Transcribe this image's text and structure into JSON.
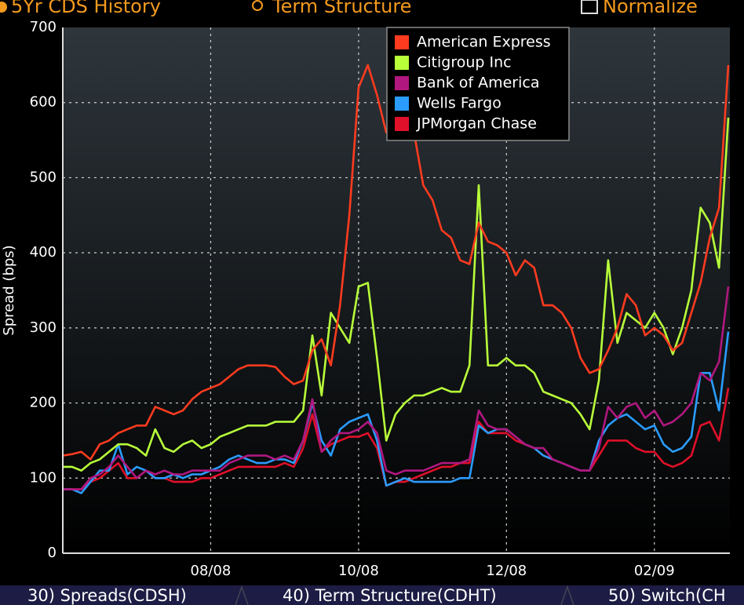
{
  "toolbar": {
    "left": "5Yr CDS History",
    "middle": "Term Structure",
    "right": "Normalize"
  },
  "footer": {
    "items": [
      "30) Spreads(CDSH)",
      "40) Term Structure(CDHT)",
      "50) Switch(CH"
    ]
  },
  "chart_data": {
    "type": "line",
    "y_label": "Spread (bps)",
    "categories": [
      null,
      null,
      null,
      null,
      null,
      null,
      null,
      null,
      null,
      null,
      null,
      null,
      null,
      null,
      null,
      null,
      "08/08",
      null,
      null,
      null,
      null,
      null,
      null,
      null,
      null,
      null,
      null,
      null,
      null,
      null,
      null,
      null,
      "10/08",
      null,
      null,
      null,
      null,
      null,
      null,
      null,
      null,
      null,
      null,
      null,
      null,
      null,
      null,
      null,
      "12/08",
      null,
      null,
      null,
      null,
      null,
      null,
      null,
      null,
      null,
      null,
      null,
      null,
      null,
      null,
      null,
      "02/09",
      null,
      null,
      null,
      null,
      null,
      null,
      null,
      null
    ],
    "ylim": [
      0,
      700
    ],
    "yticks": [
      0,
      100,
      200,
      300,
      400,
      500,
      600,
      700
    ],
    "grid": true,
    "legend": "upper center",
    "series": [
      {
        "name": "American Express",
        "color": "#ff3b1f",
        "values": [
          130,
          132,
          135,
          125,
          145,
          150,
          160,
          165,
          170,
          170,
          195,
          190,
          185,
          190,
          205,
          215,
          220,
          225,
          235,
          245,
          250,
          250,
          250,
          248,
          235,
          225,
          230,
          270,
          285,
          250,
          330,
          450,
          620,
          650,
          610,
          560,
          600,
          600,
          560,
          490,
          470,
          430,
          420,
          390,
          385,
          440,
          415,
          410,
          400,
          370,
          390,
          380,
          330,
          330,
          320,
          300,
          260,
          240,
          245,
          270,
          300,
          345,
          330,
          290,
          300,
          290,
          270,
          280,
          320,
          360,
          420,
          460,
          650
        ]
      },
      {
        "name": "Citigroup Inc",
        "color": "#b8ff3a",
        "values": [
          115,
          115,
          110,
          120,
          125,
          135,
          145,
          145,
          140,
          130,
          165,
          140,
          135,
          145,
          150,
          140,
          145,
          155,
          160,
          165,
          170,
          170,
          170,
          175,
          175,
          175,
          190,
          290,
          210,
          320,
          300,
          280,
          355,
          360,
          260,
          150,
          185,
          200,
          210,
          210,
          215,
          220,
          215,
          215,
          250,
          490,
          250,
          250,
          260,
          250,
          250,
          240,
          215,
          210,
          205,
          200,
          185,
          165,
          230,
          390,
          280,
          320,
          310,
          300,
          320,
          300,
          265,
          300,
          350,
          460,
          440,
          380,
          580
        ]
      },
      {
        "name": "Bank of America",
        "color": "#b0177f",
        "values": [
          85,
          85,
          85,
          100,
          105,
          115,
          130,
          115,
          100,
          110,
          105,
          110,
          105,
          105,
          110,
          110,
          110,
          110,
          120,
          125,
          130,
          130,
          130,
          125,
          130,
          125,
          150,
          205,
          135,
          150,
          160,
          160,
          165,
          175,
          160,
          110,
          105,
          110,
          110,
          110,
          115,
          120,
          120,
          120,
          125,
          190,
          170,
          165,
          165,
          155,
          145,
          140,
          140,
          125,
          120,
          115,
          110,
          110,
          140,
          195,
          180,
          195,
          200,
          180,
          190,
          170,
          175,
          185,
          200,
          240,
          230,
          255,
          355
        ]
      },
      {
        "name": "Wells Fargo",
        "color": "#2a9cff",
        "values": [
          85,
          85,
          80,
          95,
          110,
          110,
          145,
          105,
          115,
          110,
          100,
          100,
          105,
          100,
          105,
          105,
          110,
          115,
          125,
          130,
          125,
          120,
          120,
          125,
          125,
          120,
          150,
          200,
          150,
          130,
          165,
          175,
          180,
          185,
          150,
          90,
          95,
          100,
          95,
          95,
          95,
          95,
          95,
          100,
          100,
          170,
          160,
          165,
          165,
          155,
          145,
          140,
          130,
          125,
          120,
          115,
          110,
          110,
          150,
          170,
          180,
          185,
          175,
          165,
          170,
          145,
          135,
          140,
          155,
          240,
          240,
          190,
          295
        ]
      },
      {
        "name": "JPMorgan Chase",
        "color": "#e0102a",
        "values": [
          85,
          85,
          85,
          95,
          100,
          110,
          120,
          100,
          100,
          110,
          100,
          100,
          95,
          95,
          95,
          100,
          100,
          105,
          110,
          115,
          115,
          115,
          115,
          115,
          120,
          115,
          140,
          185,
          135,
          145,
          150,
          155,
          155,
          160,
          140,
          90,
          95,
          95,
          100,
          105,
          110,
          115,
          115,
          120,
          120,
          175,
          160,
          160,
          160,
          150,
          145,
          140,
          130,
          125,
          120,
          115,
          110,
          110,
          130,
          150,
          150,
          150,
          140,
          135,
          135,
          120,
          115,
          120,
          130,
          170,
          175,
          150,
          220
        ]
      }
    ]
  }
}
